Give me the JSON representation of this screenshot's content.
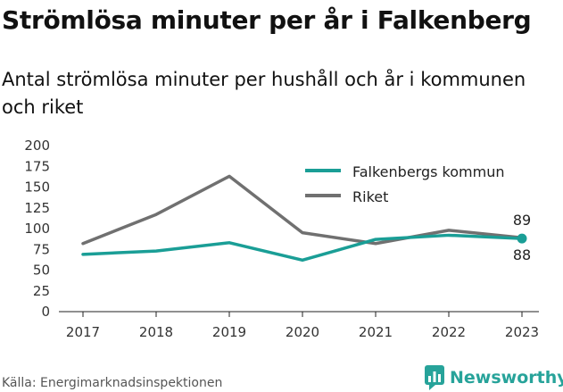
{
  "header": {
    "title": "Strömlösa minuter per år i Falkenberg",
    "subtitle": "Antal strömlösa minuter per hushåll och år i kommunen och riket"
  },
  "footer": {
    "source": "Källa: Energimarknadsinspektionen",
    "brand": "Newsworthy",
    "brand_icon": "newsworthy-logo-icon",
    "brand_color": "#27a39a"
  },
  "chart_data": {
    "type": "line",
    "categories": [
      "2017",
      "2018",
      "2019",
      "2020",
      "2021",
      "2022",
      "2023"
    ],
    "ylim": [
      0,
      200
    ],
    "yticks": [
      0,
      25,
      50,
      75,
      100,
      125,
      150,
      175,
      200
    ],
    "grid": false,
    "legend_position": "top-right",
    "series": [
      {
        "name": "Falkenbergs kommun",
        "color": "#1a9e96",
        "values": [
          69,
          73,
          83,
          62,
          87,
          92,
          88
        ],
        "end_label": "88",
        "end_marker": true
      },
      {
        "name": "Riket",
        "color": "#707070",
        "values": [
          82,
          117,
          163,
          95,
          82,
          98,
          89
        ],
        "end_label": "89",
        "end_marker": false
      }
    ]
  }
}
